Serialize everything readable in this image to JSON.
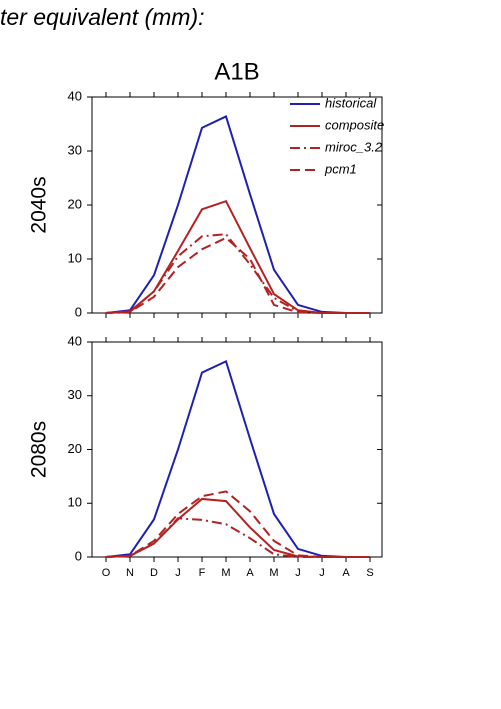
{
  "header": "ter equivalent (mm):",
  "chart_data": [
    {
      "type": "line",
      "title": "A1B",
      "ylabel": "2040s",
      "ylim": [
        0,
        40
      ],
      "yticks": [
        0,
        10,
        20,
        30,
        40
      ],
      "legend": "upper right",
      "series": [
        {
          "name": "historical",
          "color": "#1f1fb4",
          "style": "solid",
          "values": [
            0,
            0.5,
            7,
            20,
            34.3,
            36.4,
            22,
            8,
            1.5,
            0.2,
            0,
            0
          ]
        },
        {
          "name": "composite",
          "color": "#b22222",
          "style": "solid",
          "values": [
            0,
            0.3,
            4,
            11.5,
            19.2,
            20.7,
            12,
            3.5,
            0.5,
            0,
            0,
            0
          ]
        },
        {
          "name": "miroc_3.2",
          "color": "#b22222",
          "style": "dashdot",
          "values": [
            0,
            0.2,
            4,
            10.5,
            14.2,
            14.6,
            9,
            2.8,
            0.3,
            0,
            0,
            0
          ]
        },
        {
          "name": "pcm1",
          "color": "#b22222",
          "style": "dash",
          "values": [
            0,
            0.2,
            3,
            8.5,
            11.8,
            13.9,
            10,
            1.5,
            0.1,
            0,
            0,
            0
          ]
        }
      ]
    },
    {
      "type": "line",
      "ylabel": "2080s",
      "ylim": [
        0,
        40
      ],
      "yticks": [
        0,
        10,
        20,
        30,
        40
      ],
      "categories": [
        "O",
        "N",
        "D",
        "J",
        "F",
        "M",
        "A",
        "M",
        "J",
        "J",
        "A",
        "S"
      ],
      "series": [
        {
          "color": "#1f1fb4",
          "style": "solid",
          "values": [
            0,
            0.5,
            7,
            20,
            34.3,
            36.4,
            22,
            8,
            1.5,
            0.2,
            0,
            0
          ]
        },
        {
          "color": "#b22222",
          "style": "solid",
          "values": [
            0,
            0.2,
            2.5,
            7,
            10.8,
            10.4,
            5.5,
            1.3,
            0.1,
            0,
            0,
            0
          ]
        },
        {
          "color": "#b22222",
          "style": "dashdot",
          "values": [
            0,
            0.2,
            2.5,
            7.2,
            6.9,
            6.1,
            3.5,
            0.5,
            0,
            0,
            0,
            0
          ]
        },
        {
          "color": "#b22222",
          "style": "dash",
          "values": [
            0,
            0.2,
            3,
            8,
            11.3,
            12.2,
            8.5,
            3,
            0.3,
            0,
            0,
            0
          ]
        }
      ]
    }
  ]
}
